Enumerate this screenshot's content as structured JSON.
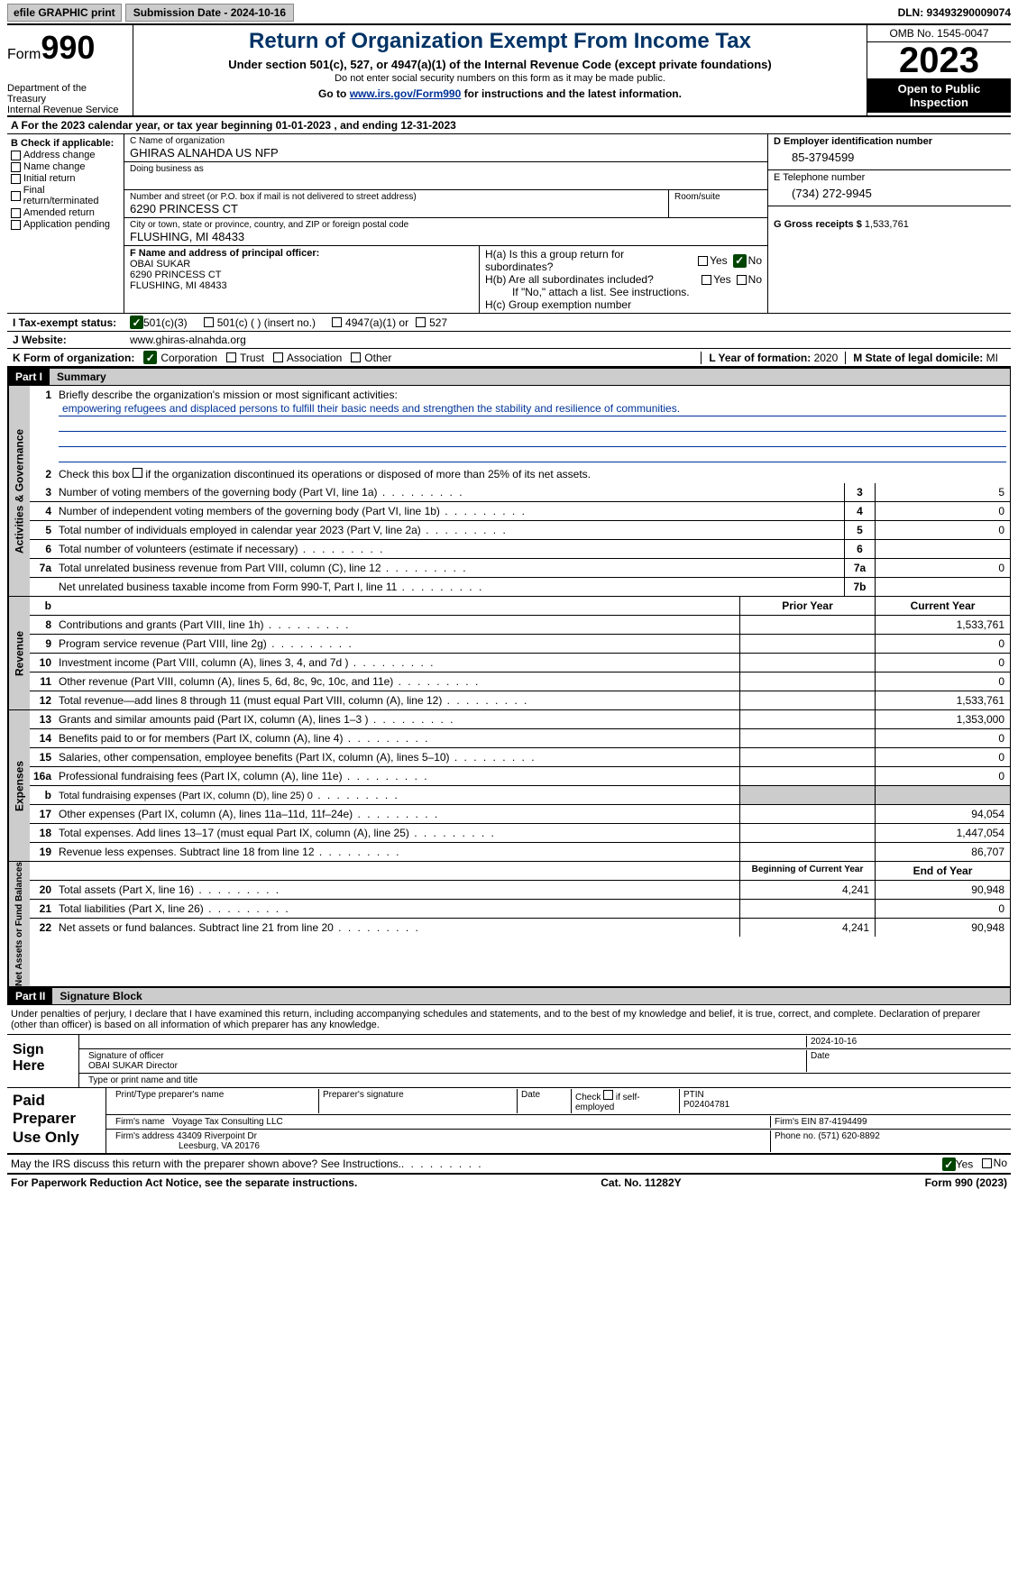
{
  "colors": {
    "navy": "#003366",
    "link": "#003399",
    "checkgreen": "#004400",
    "grey": "#cccccc"
  },
  "topbar": {
    "efile": "efile GRAPHIC print",
    "submission": "Submission Date - 2024-10-16",
    "dln": "DLN: 93493290009074"
  },
  "header": {
    "form_label": "Form",
    "form_no": "990",
    "dept": "Department of the Treasury\nInternal Revenue Service",
    "title": "Return of Organization Exempt From Income Tax",
    "subtitle": "Under section 501(c), 527, or 4947(a)(1) of the Internal Revenue Code (except private foundations)",
    "note": "Do not enter social security numbers on this form as it may be made public.",
    "goto_pre": "Go to ",
    "goto_link": "www.irs.gov/Form990",
    "goto_post": " for instructions and the latest information.",
    "omb": "OMB No. 1545-0047",
    "year": "2023",
    "inspect": "Open to Public Inspection"
  },
  "period": {
    "a_pre": "A For the 2023 calendar year, or tax year beginning ",
    "begin": "01-01-2023",
    "mid": " , and ending ",
    "end": "12-31-2023"
  },
  "boxB": {
    "label": "B Check if applicable:",
    "items": [
      "Address change",
      "Name change",
      "Initial return",
      "Final return/terminated",
      "Amended return",
      "Application pending"
    ]
  },
  "boxC": {
    "name_lbl": "C Name of organization",
    "name": "GHIRAS ALNAHDA US NFP",
    "dba_lbl": "Doing business as",
    "street_lbl": "Number and street (or P.O. box if mail is not delivered to street address)",
    "room_lbl": "Room/suite",
    "street": "6290 PRINCESS CT",
    "city_lbl": "City or town, state or province, country, and ZIP or foreign postal code",
    "city": "FLUSHING, MI  48433"
  },
  "boxD": {
    "lbl": "D Employer identification number",
    "val": "85-3794599"
  },
  "boxE": {
    "lbl": "E Telephone number",
    "val": "(734) 272-9945"
  },
  "boxG": {
    "lbl": "G Gross receipts $",
    "val": "1,533,761"
  },
  "boxF": {
    "lbl": "F  Name and address of principal officer:",
    "name": "OBAI SUKAR",
    "street": "6290 PRINCESS CT",
    "city": "FLUSHING, MI  48433"
  },
  "boxH": {
    "a": "H(a)  Is this a group return for subordinates?",
    "b": "H(b)  Are all subordinates included?",
    "note": "If \"No,\" attach a list. See instructions.",
    "c": "H(c)  Group exemption number"
  },
  "taxstatus": {
    "lbl": "I   Tax-exempt status:",
    "c3": "501(c)(3)",
    "c": "501(c) (  ) (insert no.)",
    "a1": "4947(a)(1) or",
    "s527": "527"
  },
  "website": {
    "lbl": "J   Website:",
    "val": "www.ghiras-alnahda.org"
  },
  "boxK": {
    "lbl": "K Form of organization:",
    "corp": "Corporation",
    "trust": "Trust",
    "assoc": "Association",
    "other": "Other"
  },
  "boxL": {
    "lbl": "L Year of formation:",
    "val": "2020"
  },
  "boxM": {
    "lbl": "M State of legal domicile:",
    "val": "MI"
  },
  "part1": {
    "hdr": "Part I",
    "title": "Summary"
  },
  "summary": {
    "gov_label": "Activities & Governance",
    "rev_label": "Revenue",
    "exp_label": "Expenses",
    "net_label": "Net Assets or Fund Balances",
    "line1_lbl": "Briefly describe the organization's mission or most significant activities:",
    "mission": "empowering refugees and displaced persons to fulfill their basic needs and strengthen the stability and resilience of communities.",
    "line2": "Check this box        if the organization discontinued its operations or disposed of more than 25% of its net assets.",
    "lines_gov": [
      {
        "n": "3",
        "d": "Number of voting members of the governing body (Part VI, line 1a)",
        "b": "3",
        "v": "5"
      },
      {
        "n": "4",
        "d": "Number of independent voting members of the governing body (Part VI, line 1b)",
        "b": "4",
        "v": "0"
      },
      {
        "n": "5",
        "d": "Total number of individuals employed in calendar year 2023 (Part V, line 2a)",
        "b": "5",
        "v": "0"
      },
      {
        "n": "6",
        "d": "Total number of volunteers (estimate if necessary)",
        "b": "6",
        "v": ""
      },
      {
        "n": "7a",
        "d": "Total unrelated business revenue from Part VIII, column (C), line 12",
        "b": "7a",
        "v": "0"
      },
      {
        "n": "",
        "d": "Net unrelated business taxable income from Form 990-T, Part I, line 11",
        "b": "7b",
        "v": ""
      }
    ],
    "col_hdr": {
      "b": "b",
      "prior": "Prior Year",
      "curr": "Current Year"
    },
    "lines_rev": [
      {
        "n": "8",
        "d": "Contributions and grants (Part VIII, line 1h)",
        "p": "",
        "c": "1,533,761"
      },
      {
        "n": "9",
        "d": "Program service revenue (Part VIII, line 2g)",
        "p": "",
        "c": "0"
      },
      {
        "n": "10",
        "d": "Investment income (Part VIII, column (A), lines 3, 4, and 7d )",
        "p": "",
        "c": "0"
      },
      {
        "n": "11",
        "d": "Other revenue (Part VIII, column (A), lines 5, 6d, 8c, 9c, 10c, and 11e)",
        "p": "",
        "c": "0"
      },
      {
        "n": "12",
        "d": "Total revenue—add lines 8 through 11 (must equal Part VIII, column (A), line 12)",
        "p": "",
        "c": "1,533,761"
      }
    ],
    "lines_exp": [
      {
        "n": "13",
        "d": "Grants and similar amounts paid (Part IX, column (A), lines 1–3 )",
        "p": "",
        "c": "1,353,000"
      },
      {
        "n": "14",
        "d": "Benefits paid to or for members (Part IX, column (A), line 4)",
        "p": "",
        "c": "0"
      },
      {
        "n": "15",
        "d": "Salaries, other compensation, employee benefits (Part IX, column (A), lines 5–10)",
        "p": "",
        "c": "0"
      },
      {
        "n": "16a",
        "d": "Professional fundraising fees (Part IX, column (A), line 11e)",
        "p": "",
        "c": "0"
      },
      {
        "n": "b",
        "d": "Total fundraising expenses (Part IX, column (D), line 25) 0",
        "p": "grey",
        "c": "grey",
        "small": true
      },
      {
        "n": "17",
        "d": "Other expenses (Part IX, column (A), lines 11a–11d, 11f–24e)",
        "p": "",
        "c": "94,054"
      },
      {
        "n": "18",
        "d": "Total expenses. Add lines 13–17 (must equal Part IX, column (A), line 25)",
        "p": "",
        "c": "1,447,054"
      },
      {
        "n": "19",
        "d": "Revenue less expenses. Subtract line 18 from line 12",
        "p": "",
        "c": "86,707"
      }
    ],
    "net_hdr": {
      "prior": "Beginning of Current Year",
      "curr": "End of Year"
    },
    "lines_net": [
      {
        "n": "20",
        "d": "Total assets (Part X, line 16)",
        "p": "4,241",
        "c": "90,948"
      },
      {
        "n": "21",
        "d": "Total liabilities (Part X, line 26)",
        "p": "",
        "c": "0"
      },
      {
        "n": "22",
        "d": "Net assets or fund balances. Subtract line 21 from line 20",
        "p": "4,241",
        "c": "90,948"
      }
    ]
  },
  "part2": {
    "hdr": "Part II",
    "title": "Signature Block"
  },
  "penalty": "Under penalties of perjury, I declare that I have examined this return, including accompanying schedules and statements, and to the best of my knowledge and belief, it is true, correct, and complete. Declaration of preparer (other than officer) is based on all information of which preparer has any knowledge.",
  "sign": {
    "here": "Sign Here",
    "sig_lbl": "Signature of officer",
    "name": "OBAI SUKAR  Director",
    "type_lbl": "Type or print name and title",
    "date_lbl": "Date",
    "date": "2024-10-16"
  },
  "paid": {
    "lbl": "Paid Preparer Use Only",
    "prep_name_lbl": "Print/Type preparer's name",
    "prep_sig_lbl": "Preparer's signature",
    "date_lbl": "Date",
    "check_lbl": "Check        if self-employed",
    "ptin_lbl": "PTIN",
    "ptin": "P02404781",
    "firm_name_lbl": "Firm's name",
    "firm_name": "Voyage Tax Consulting LLC",
    "firm_ein_lbl": "Firm's EIN",
    "firm_ein": "87-4194499",
    "firm_addr_lbl": "Firm's address",
    "firm_addr1": "43409 Riverpoint Dr",
    "firm_addr2": "Leesburg, VA  20176",
    "phone_lbl": "Phone no.",
    "phone": "(571) 620-8892"
  },
  "discuss": "May the IRS discuss this return with the preparer shown above? See Instructions.",
  "footer": {
    "pra": "For Paperwork Reduction Act Notice, see the separate instructions.",
    "cat": "Cat. No. 11282Y",
    "form": "Form 990 (2023)"
  },
  "yn": {
    "yes": "Yes",
    "no": "No"
  }
}
